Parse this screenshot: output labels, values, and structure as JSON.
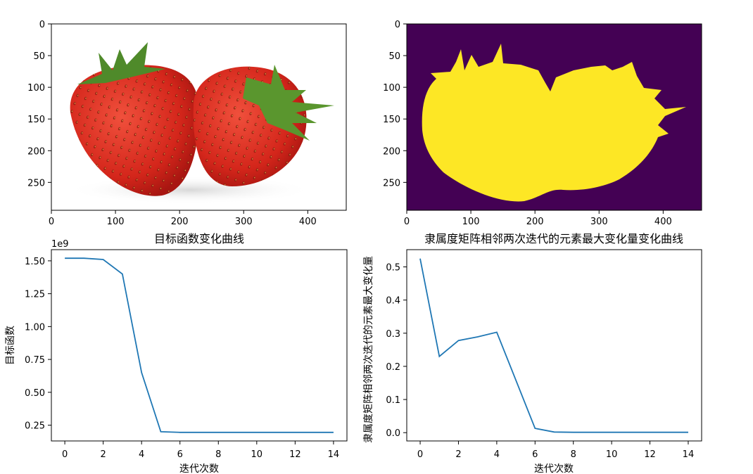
{
  "figure": {
    "background": "#ffffff",
    "line_color": "#1f77b4",
    "panels": {
      "image_original": {
        "kind": "image",
        "description_icon": "strawberry-photo",
        "xticks": [
          "0",
          "100",
          "200",
          "300",
          "400"
        ],
        "yticks": [
          "0",
          "50",
          "100",
          "150",
          "200",
          "250"
        ]
      },
      "image_segmented": {
        "kind": "image",
        "description_icon": "segmentation-mask",
        "background_color": "#440154",
        "mask_color": "#fde725",
        "xticks": [
          "0",
          "100",
          "200",
          "300",
          "400"
        ],
        "yticks": [
          "0",
          "50",
          "100",
          "150",
          "200",
          "250"
        ]
      }
    }
  },
  "chart_data": [
    {
      "type": "line",
      "title": "目标函数变化曲线",
      "xlabel": "迭代次数",
      "ylabel": "目标函数",
      "y_offset_label": "1e9",
      "x": [
        0,
        1,
        2,
        3,
        4,
        5,
        6,
        7,
        8,
        9,
        10,
        11,
        12,
        13,
        14
      ],
      "values": [
        1.52,
        1.52,
        1.51,
        1.4,
        0.65,
        0.2,
        0.195,
        0.195,
        0.195,
        0.195,
        0.195,
        0.195,
        0.195,
        0.195,
        0.195
      ],
      "xlim": [
        -0.7,
        14.7
      ],
      "ylim": [
        0.13,
        1.585
      ],
      "xticks": [
        0,
        2,
        4,
        6,
        8,
        10,
        12,
        14
      ],
      "yticks": [
        0.25,
        0.5,
        0.75,
        1.0,
        1.25,
        1.5
      ],
      "ytick_labels": [
        "0.25",
        "0.50",
        "0.75",
        "1.00",
        "1.25",
        "1.50"
      ],
      "xtick_labels": [
        "0",
        "2",
        "4",
        "6",
        "8",
        "10",
        "12",
        "14"
      ]
    },
    {
      "type": "line",
      "title": "隶属度矩阵相邻两次迭代的元素最大变化量变化曲线",
      "xlabel": "迭代次数",
      "ylabel": "隶属度矩阵相邻两次迭代的元素最大变化量",
      "x": [
        0,
        1,
        2,
        3,
        4,
        5,
        6,
        7,
        8,
        9,
        10,
        11,
        12,
        13,
        14
      ],
      "values": [
        0.525,
        0.23,
        0.278,
        0.289,
        0.303,
        0.158,
        0.013,
        0.002,
        0.001,
        0.001,
        0.001,
        0.001,
        0.001,
        0.001,
        0.001
      ],
      "xlim": [
        -0.7,
        14.7
      ],
      "ylim": [
        -0.025,
        0.552
      ],
      "xticks": [
        0,
        2,
        4,
        6,
        8,
        10,
        12,
        14
      ],
      "yticks": [
        0.0,
        0.1,
        0.2,
        0.3,
        0.4,
        0.5
      ],
      "ytick_labels": [
        "0.0",
        "0.1",
        "0.2",
        "0.3",
        "0.4",
        "0.5"
      ],
      "xtick_labels": [
        "0",
        "2",
        "4",
        "6",
        "8",
        "10",
        "12",
        "14"
      ]
    }
  ]
}
